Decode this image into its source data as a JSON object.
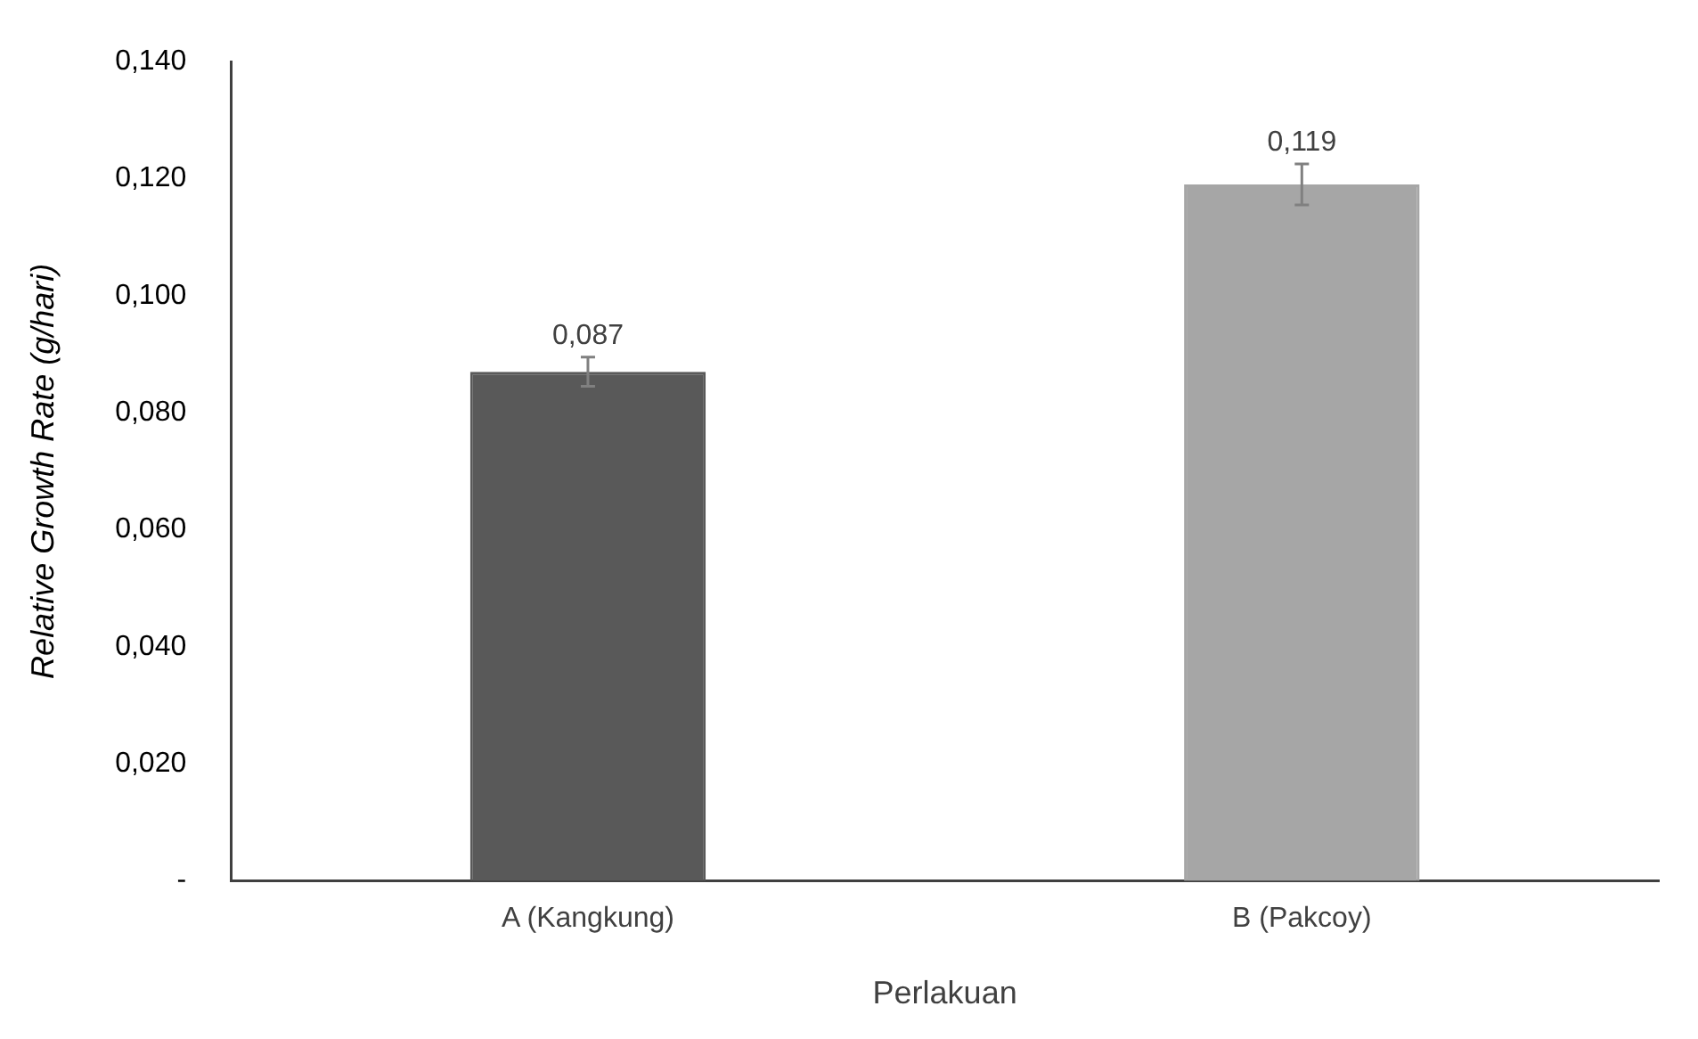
{
  "chart_data": {
    "type": "bar",
    "xlabel": "Perlakuan",
    "ylabel": "Relative Growth Rate (g/hari)",
    "categories": [
      "A (Kangkung)",
      "B (Pakcoy)"
    ],
    "values": [
      0.087,
      0.119
    ],
    "colors": [
      "#595959",
      "#a6a6a6"
    ],
    "errors": [
      0.0025,
      0.0035
    ],
    "value_labels": [
      "0,087",
      "0,119"
    ],
    "ylim": [
      0,
      0.14
    ],
    "yticks": [
      {
        "value": 0,
        "label": "-"
      },
      {
        "value": 0.02,
        "label": "0,020"
      },
      {
        "value": 0.04,
        "label": "0,040"
      },
      {
        "value": 0.06,
        "label": "0,060"
      },
      {
        "value": 0.08,
        "label": "0,080"
      },
      {
        "value": 0.1,
        "label": "0,100"
      },
      {
        "value": 0.12,
        "label": "0,120"
      },
      {
        "value": 0.14,
        "label": "0,140"
      }
    ],
    "grid": false,
    "legend": false
  }
}
